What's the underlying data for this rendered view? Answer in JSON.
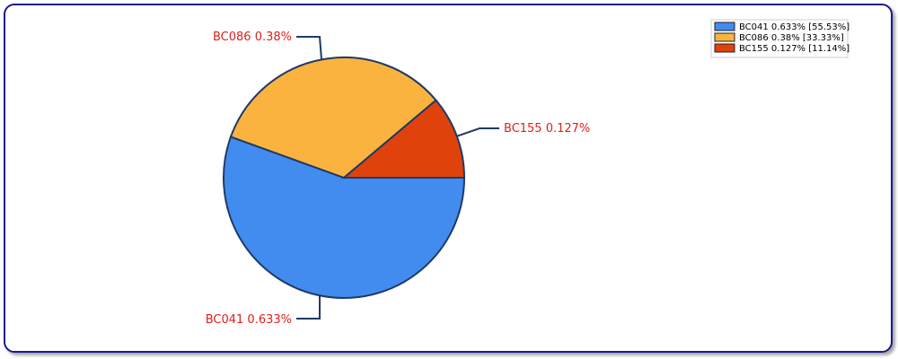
{
  "chart_data": {
    "type": "pie",
    "slices": [
      {
        "name": "BC041",
        "value": 0.633,
        "value_label": "0.633%",
        "percent_label": "[55.53%]",
        "color": "#428cf0"
      },
      {
        "name": "BC086",
        "value": 0.38,
        "value_label": "0.38%",
        "percent_label": "[33.33%]",
        "color": "#fbb33f"
      },
      {
        "name": "BC155",
        "value": 0.127,
        "value_label": "0.127%",
        "percent_label": "[11.14%]",
        "color": "#e0420c"
      }
    ],
    "slice_labels": [
      "BC041 0.633%",
      "BC086 0.38%",
      "BC155 0.127%"
    ],
    "legend": {
      "placement": "top-right",
      "entries": [
        "BC041 0.633% [55.53%]",
        "BC086 0.38% [33.33%]",
        "BC155 0.127% [11.14%]"
      ]
    },
    "colors": {
      "frame_border": "#1a1a8c",
      "slice_border": "#1f3a66",
      "label_text": "#e0201a",
      "leader_line": "#1f3a66"
    }
  }
}
